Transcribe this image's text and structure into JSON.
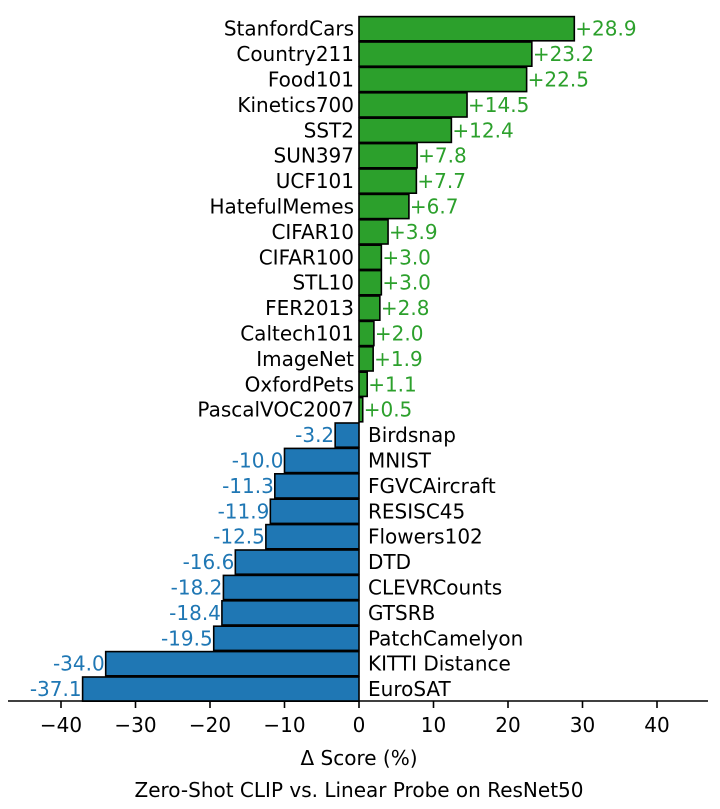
{
  "chart_data": {
    "type": "bar",
    "orientation": "horizontal",
    "title": "Zero-Shot CLIP vs. Linear Probe on ResNet50",
    "xlabel": "Δ Score (%)",
    "ylabel": "",
    "xlim": [
      -47,
      47
    ],
    "xticks": [
      -40,
      -30,
      -20,
      -10,
      0,
      10,
      20,
      30,
      40
    ],
    "xtick_labels": [
      "−40",
      "−30",
      "−20",
      "−10",
      "0",
      "10",
      "20",
      "30",
      "40"
    ],
    "grid": false,
    "colors": {
      "positive": "#2ca02c",
      "negative": "#1f77b4",
      "edge": "#000000"
    },
    "categories": [
      "StanfordCars",
      "Country211",
      "Food101",
      "Kinetics700",
      "SST2",
      "SUN397",
      "UCF101",
      "HatefulMemes",
      "CIFAR10",
      "CIFAR100",
      "STL10",
      "FER2013",
      "Caltech101",
      "ImageNet",
      "OxfordPets",
      "PascalVOC2007",
      "Birdsnap",
      "MNIST",
      "FGVCAircraft",
      "RESISC45",
      "Flowers102",
      "DTD",
      "CLEVRCounts",
      "GTSRB",
      "PatchCamelyon",
      "KITTI Distance",
      "EuroSAT"
    ],
    "values": [
      28.9,
      23.2,
      22.5,
      14.5,
      12.4,
      7.8,
      7.7,
      6.7,
      3.9,
      3.0,
      3.0,
      2.8,
      2.0,
      1.9,
      1.1,
      0.5,
      -3.2,
      -10.0,
      -11.3,
      -11.9,
      -12.5,
      -16.6,
      -18.2,
      -18.4,
      -19.5,
      -34.0,
      -37.1
    ],
    "value_labels": [
      "+28.9",
      "+23.2",
      "+22.5",
      "+14.5",
      "+12.4",
      "+7.8",
      "+7.7",
      "+6.7",
      "+3.9",
      "+3.0",
      "+3.0",
      "+2.8",
      "+2.0",
      "+1.9",
      "+1.1",
      "+0.5",
      "-3.2",
      "-10.0",
      "-11.3",
      "-11.9",
      "-12.5",
      "-16.6",
      "-18.2",
      "-18.4",
      "-19.5",
      "-34.0",
      "-37.1"
    ]
  }
}
